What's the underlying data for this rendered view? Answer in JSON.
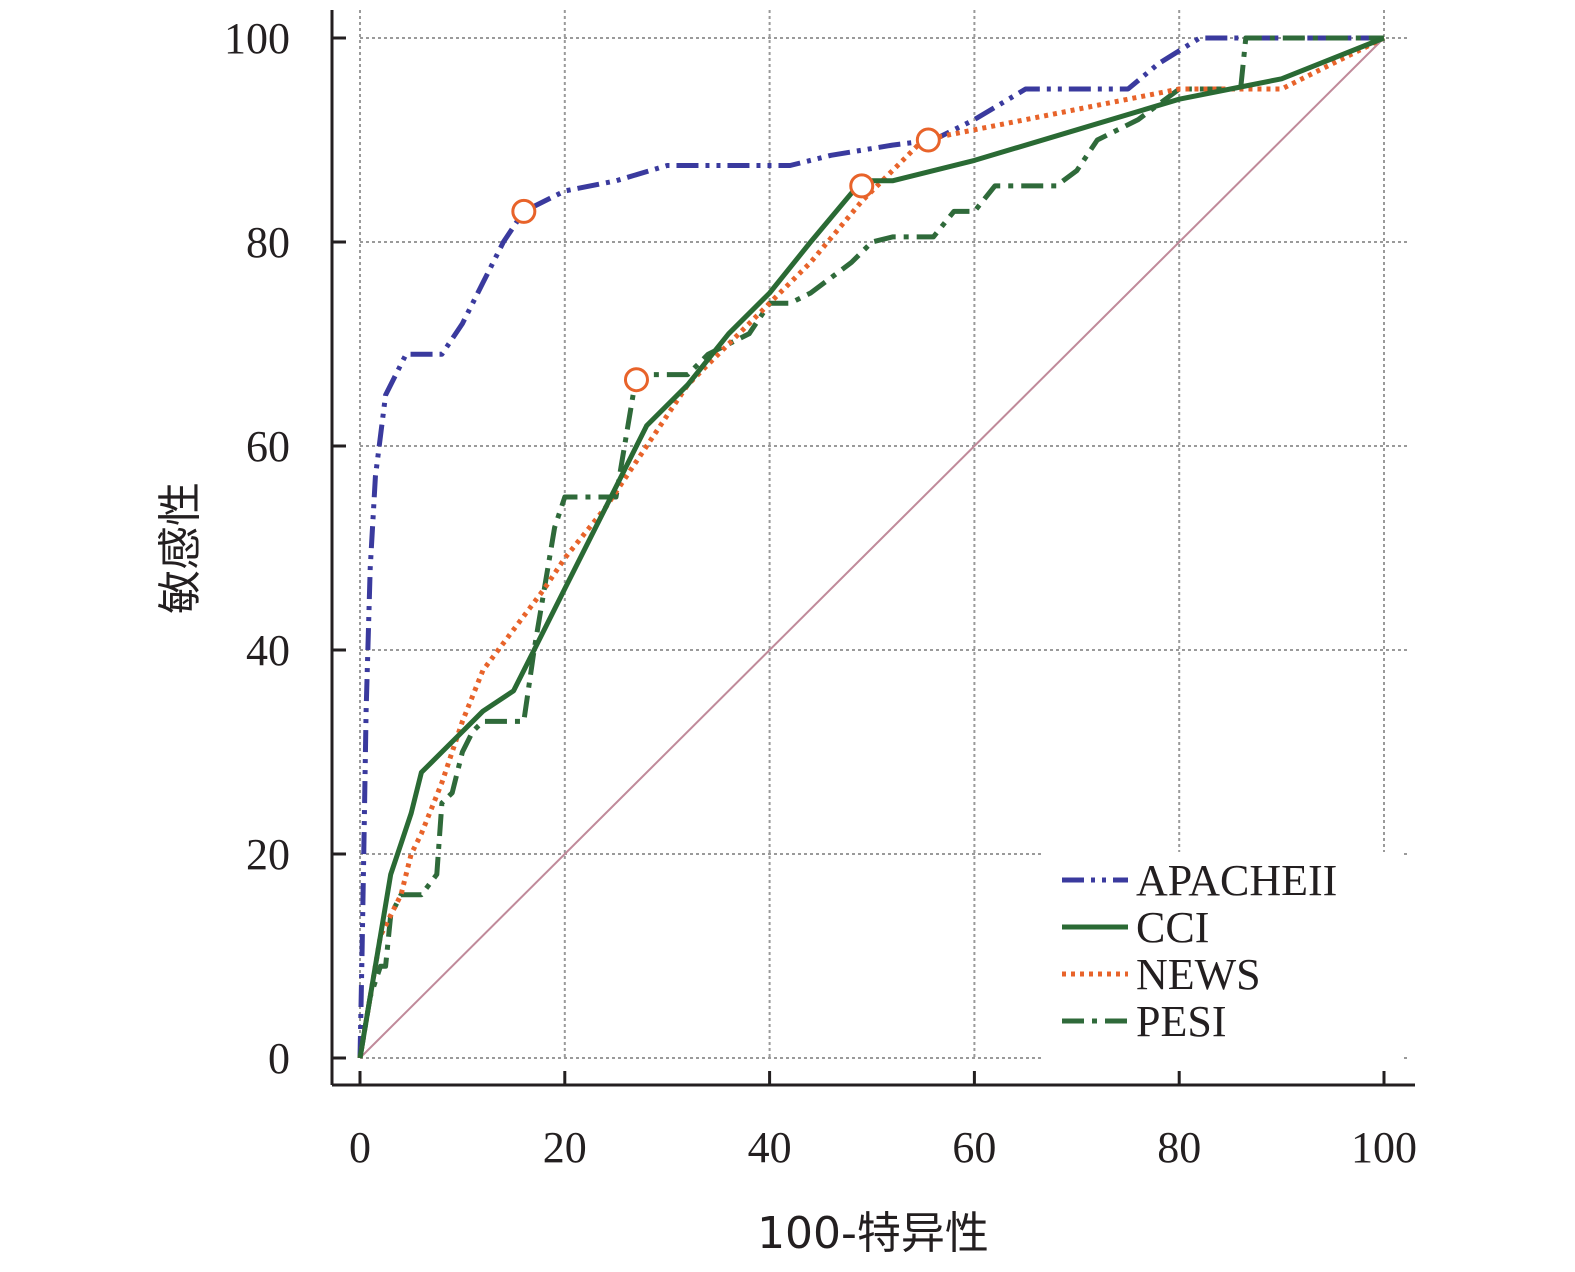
{
  "chart_data": {
    "type": "line",
    "title": "",
    "xlabel": "100-特异性",
    "ylabel": "敏感性",
    "xlim": [
      0,
      100
    ],
    "ylim": [
      0,
      100
    ],
    "xticks": [
      "0",
      "20",
      "40",
      "60",
      "80",
      "100"
    ],
    "yticks": [
      "0",
      "20",
      "40",
      "60",
      "80",
      "100"
    ],
    "grid": true,
    "legend_position": "bottom-right",
    "reference_line": {
      "x": [
        0,
        100
      ],
      "y": [
        0,
        100
      ],
      "color": "#c08a9a"
    },
    "series": [
      {
        "name": "APACHEII",
        "color": "#3a3a9e",
        "style": "dash-dot-dot",
        "x": [
          0,
          0.2,
          0.4,
          0.6,
          1,
          1.5,
          2.5,
          4.5,
          8,
          10,
          12,
          14,
          16,
          20,
          25,
          30,
          35,
          42,
          46,
          52,
          56,
          60,
          65,
          70,
          75,
          78,
          82,
          86,
          90,
          95,
          100
        ],
        "y": [
          0,
          10,
          22,
          34,
          48,
          57,
          65,
          69,
          69,
          72,
          76,
          80,
          83,
          85,
          86,
          87.5,
          87.5,
          87.5,
          88.5,
          89.5,
          90,
          92,
          95,
          95,
          95,
          97.5,
          100,
          100,
          100,
          100,
          100
        ],
        "markers": [
          {
            "x": 16,
            "y": 83
          }
        ]
      },
      {
        "name": "CCI",
        "color": "#2a6a34",
        "style": "solid",
        "x": [
          0,
          1,
          2,
          3,
          4,
          5,
          6,
          7,
          8,
          10,
          12,
          15,
          17,
          20,
          24,
          28,
          32,
          36,
          40,
          44,
          49,
          52,
          60,
          70,
          80,
          85,
          90,
          100
        ],
        "y": [
          0,
          6,
          12,
          18,
          21,
          24,
          28,
          29,
          30,
          32,
          34,
          36,
          40,
          46,
          54,
          62,
          66,
          71,
          75,
          80,
          86,
          86,
          88,
          91,
          94,
          95,
          96,
          100
        ],
        "markers": []
      },
      {
        "name": "NEWS",
        "color": "#e8632a",
        "style": "dotted",
        "x": [
          0,
          1,
          2,
          3,
          4,
          5,
          6,
          8,
          10,
          12,
          15,
          18,
          20,
          24,
          28,
          32,
          36,
          40,
          44,
          49,
          52,
          55,
          60,
          70,
          80,
          85,
          90,
          100
        ],
        "y": [
          0,
          6,
          12,
          14,
          16,
          20,
          22,
          27,
          33,
          38,
          42,
          46,
          49,
          54,
          60,
          66,
          70,
          74,
          78,
          84,
          87,
          90,
          91,
          93,
          95,
          95,
          95,
          100
        ],
        "markers": [
          {
            "x": 27,
            "y": 66.5
          },
          {
            "x": 49,
            "y": 85.5
          },
          {
            "x": 55.5,
            "y": 90
          }
        ]
      },
      {
        "name": "PESI",
        "color": "#2f6a3a",
        "style": "dash-dot",
        "x": [
          0,
          1,
          2,
          2.5,
          3,
          4,
          6,
          7.5,
          8,
          9,
          10,
          11,
          12,
          14,
          16,
          17,
          19,
          20,
          25,
          27,
          28,
          32,
          34,
          36,
          38,
          40,
          42,
          44,
          48,
          50,
          52,
          56,
          58,
          60,
          62,
          68,
          70,
          72,
          76,
          80,
          86,
          86.5,
          90,
          100
        ],
        "y": [
          0,
          6,
          9,
          9,
          14,
          16,
          16,
          18,
          25,
          26,
          30,
          32,
          33,
          33,
          33,
          40,
          52,
          55,
          55,
          67,
          67,
          67,
          69,
          70,
          71,
          74,
          74,
          75,
          78,
          80,
          80.5,
          80.5,
          83,
          83,
          85.5,
          85.5,
          87,
          90,
          92,
          95,
          95,
          100,
          100,
          100
        ],
        "markers": []
      }
    ]
  }
}
